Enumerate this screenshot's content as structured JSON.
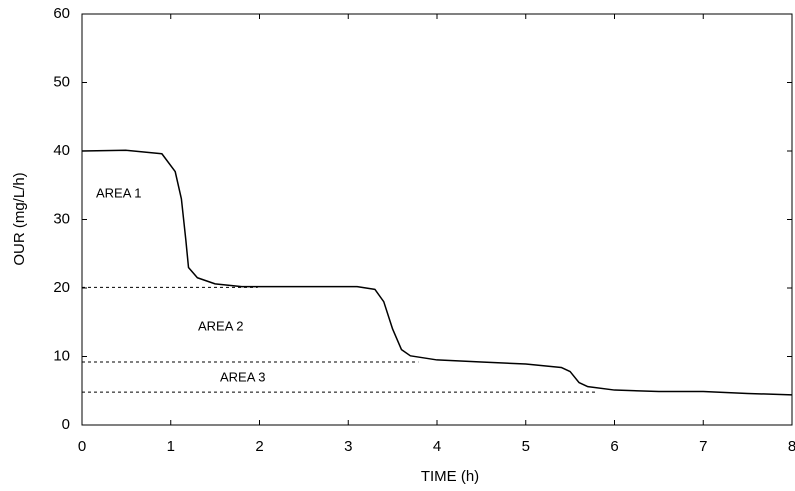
{
  "chart_data": {
    "type": "line",
    "xlabel": "TIME (h)",
    "ylabel": "OUR (mg/L/h)",
    "x": [
      0,
      0.5,
      0.9,
      1.05,
      1.12,
      1.17,
      1.2,
      1.3,
      1.5,
      1.8,
      2.5,
      3.1,
      3.3,
      3.4,
      3.5,
      3.6,
      3.7,
      4,
      4.5,
      5,
      5.4,
      5.5,
      5.6,
      5.7,
      6,
      6.5,
      7,
      7.5,
      8
    ],
    "values": [
      40,
      40.1,
      39.6,
      37,
      33,
      27,
      23,
      21.5,
      20.6,
      20.2,
      20.2,
      20.2,
      19.8,
      18,
      14,
      11,
      10.1,
      9.5,
      9.2,
      8.9,
      8.4,
      7.8,
      6.2,
      5.6,
      5.1,
      4.9,
      4.9,
      4.6,
      4.4
    ],
    "color": "#000000",
    "xlim": [
      0,
      8
    ],
    "xticks": [
      0,
      1,
      2,
      3,
      4,
      5,
      6,
      7,
      8
    ],
    "ylim": [
      0,
      60
    ],
    "yticks": [
      0,
      10,
      20,
      30,
      40,
      50,
      60
    ],
    "reference_lines": [
      {
        "y": 20.1,
        "x": [
          0,
          1.98
        ]
      },
      {
        "y": 9.2,
        "x": [
          0,
          3.79
        ]
      },
      {
        "y": 4.8,
        "x": [
          0,
          5.81
        ]
      }
    ],
    "annotations": [
      "AREA 1",
      "AREA 2",
      "AREA 3"
    ]
  }
}
